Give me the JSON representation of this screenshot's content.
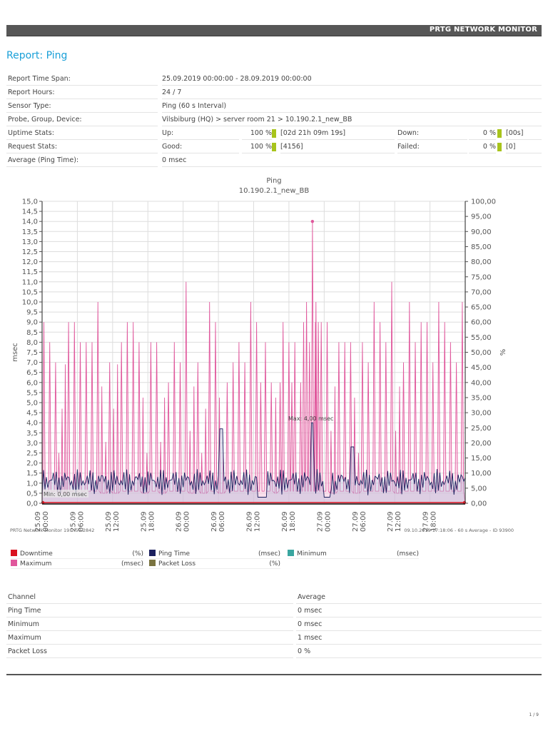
{
  "header": {
    "brand": "PRTG NETWORK MONITOR"
  },
  "report": {
    "title": "Report: Ping"
  },
  "info": {
    "time_span": {
      "label": "Report Time Span:",
      "value": "25.09.2019 00:00:00 - 28.09.2019 00:00:00"
    },
    "hours": {
      "label": "Report Hours:",
      "value": "24 / 7"
    },
    "sensor_type": {
      "label": "Sensor Type:",
      "value": "Ping (60 s Interval)"
    },
    "device": {
      "label": "Probe, Group, Device:",
      "value": "Vilsbiburg (HQ) > server room 21 > 10.190.2.1_new_BB"
    },
    "uptime": {
      "label": "Uptime Stats:",
      "up_label": "Up:",
      "up_pct": "100 %",
      "up_ext": "[02d 21h 09m 19s]",
      "down_label": "Down:",
      "down_pct": "0 %",
      "down_ext": "[00s]"
    },
    "requests": {
      "label": "Request Stats:",
      "good_label": "Good:",
      "good_pct": "100 %",
      "good_ext": "[4156]",
      "failed_label": "Failed:",
      "failed_pct": "0 %",
      "failed_ext": "[0]"
    },
    "average": {
      "label": "Average (Ping Time):",
      "value": "0 msec"
    },
    "bar_color": "#a8c41c"
  },
  "chart_meta": {
    "footer_left": "PRTG Network Monitor 19.2.50.2842",
    "footer_right": "09.10.2019 17:18:06 - 60 s Average - ID 93900",
    "max_label": "Max: 4,00 msec",
    "min_label": "Min: 0,00 msec"
  },
  "chart_data": {
    "type": "line",
    "title": "Ping",
    "subtitle": "10.190.2.1_new_BB",
    "xlabel": "",
    "ylabel": "msec",
    "y2label": "%",
    "ylim": [
      0,
      15
    ],
    "y2lim": [
      0,
      100
    ],
    "grid": true,
    "legend_position": "bottom",
    "y_ticks": [
      "0,0",
      "0,5",
      "1,0",
      "1,5",
      "2,0",
      "2,5",
      "3,0",
      "3,5",
      "4,0",
      "4,5",
      "5,0",
      "5,5",
      "6,0",
      "6,5",
      "7,0",
      "7,5",
      "8,0",
      "8,5",
      "9,0",
      "9,5",
      "10,0",
      "10,5",
      "11,0",
      "11,5",
      "12,0",
      "12,5",
      "13,0",
      "13,5",
      "14,0",
      "14,5",
      "15,0"
    ],
    "y2_ticks": [
      "0,00",
      "5,00",
      "10,00",
      "15,00",
      "20,00",
      "25,00",
      "30,00",
      "35,00",
      "40,00",
      "45,00",
      "50,00",
      "55,00",
      "60,00",
      "65,00",
      "70,00",
      "75,00",
      "80,00",
      "85,00",
      "90,00",
      "95,00",
      "100,00"
    ],
    "x_ticks": [
      [
        "25.09",
        "00:00"
      ],
      [
        "25.09",
        "06:00"
      ],
      [
        "25.09",
        "12:00"
      ],
      [
        "25.09",
        "18:00"
      ],
      [
        "26.09",
        "00:00"
      ],
      [
        "26.09",
        "06:00"
      ],
      [
        "26.09",
        "12:00"
      ],
      [
        "26.09",
        "18:00"
      ],
      [
        "27.09",
        "00:00"
      ],
      [
        "27.09",
        "06:00"
      ],
      [
        "27.09",
        "12:00"
      ],
      [
        "27.09",
        "18:00"
      ]
    ],
    "x_range_hours": [
      0,
      72
    ],
    "series": [
      {
        "name": "Downtime",
        "unit": "(%)",
        "color": "#d9121f",
        "axis": "right",
        "values_desc": "0 throughout"
      },
      {
        "name": "Ping Time",
        "unit": "(msec)",
        "color": "#1b1f5e",
        "axis": "left",
        "values_desc": "mostly 0.5–2.0 msec, peak 4.00 msec near 26.09 21:00"
      },
      {
        "name": "Minimum",
        "unit": "(msec)",
        "color": "#3aa6a0",
        "axis": "left",
        "values_desc": "0 throughout"
      },
      {
        "name": "Maximum",
        "unit": "(msec)",
        "color": "#e0579c",
        "axis": "left",
        "values_desc": "spikes between 4 and 11 msec, peak 14.0 msec near 26.09 21:00"
      },
      {
        "name": "Packet Loss",
        "unit": "(%)",
        "color": "#7a7340",
        "axis": "right",
        "values_desc": "0 throughout"
      }
    ],
    "maximum_peaks": [
      {
        "h": 0.3,
        "v": 9
      },
      {
        "h": 1.3,
        "v": 8
      },
      {
        "h": 2.3,
        "v": 7
      },
      {
        "h": 4.5,
        "v": 9
      },
      {
        "h": 5.5,
        "v": 9
      },
      {
        "h": 6.5,
        "v": 8
      },
      {
        "h": 7.5,
        "v": 8
      },
      {
        "h": 8.5,
        "v": 8
      },
      {
        "h": 9.5,
        "v": 10
      },
      {
        "h": 11.5,
        "v": 7
      },
      {
        "h": 13.5,
        "v": 8
      },
      {
        "h": 14.5,
        "v": 9
      },
      {
        "h": 15.5,
        "v": 9
      },
      {
        "h": 16.5,
        "v": 8
      },
      {
        "h": 18.5,
        "v": 8
      },
      {
        "h": 19.5,
        "v": 8
      },
      {
        "h": 21.5,
        "v": 6
      },
      {
        "h": 22.5,
        "v": 8
      },
      {
        "h": 23.5,
        "v": 7
      },
      {
        "h": 24.5,
        "v": 11
      },
      {
        "h": 26.5,
        "v": 7
      },
      {
        "h": 28.5,
        "v": 10
      },
      {
        "h": 29.5,
        "v": 9
      },
      {
        "h": 31.5,
        "v": 6
      },
      {
        "h": 32.5,
        "v": 7
      },
      {
        "h": 33.5,
        "v": 8
      },
      {
        "h": 34.5,
        "v": 7
      },
      {
        "h": 35.5,
        "v": 10
      },
      {
        "h": 36.5,
        "v": 9
      },
      {
        "h": 40.5,
        "v": 6
      },
      {
        "h": 42.5,
        "v": 6
      },
      {
        "h": 44.5,
        "v": 9
      },
      {
        "h": 45.5,
        "v": 8
      },
      {
        "h": 46.5,
        "v": 9
      },
      {
        "h": 47.5,
        "v": 9
      },
      {
        "h": 48.5,
        "v": 9
      },
      {
        "h": 50.5,
        "v": 8
      },
      {
        "h": 51.5,
        "v": 8
      },
      {
        "h": 52.5,
        "v": 8
      },
      {
        "h": 54.5,
        "v": 8
      },
      {
        "h": 55.5,
        "v": 7
      },
      {
        "h": 56.5,
        "v": 10
      },
      {
        "h": 57.5,
        "v": 9
      },
      {
        "h": 58.5,
        "v": 8
      },
      {
        "h": 59.5,
        "v": 11
      },
      {
        "h": 61.5,
        "v": 7
      },
      {
        "h": 62.5,
        "v": 10
      },
      {
        "h": 63.5,
        "v": 8
      },
      {
        "h": 64.5,
        "v": 9
      },
      {
        "h": 65.5,
        "v": 9
      },
      {
        "h": 66.5,
        "v": 7
      },
      {
        "h": 67.5,
        "v": 10
      },
      {
        "h": 68.5,
        "v": 9
      },
      {
        "h": 69.5,
        "v": 8
      },
      {
        "h": 70.5,
        "v": 7
      },
      {
        "h": 71.5,
        "v": 10
      }
    ],
    "maximum_peak_extra": [
      {
        "h": 37.2,
        "v": 6
      },
      {
        "h": 38.0,
        "v": 8
      },
      {
        "h": 39.0,
        "v": 6
      },
      {
        "h": 41.0,
        "v": 9
      },
      {
        "h": 42.0,
        "v": 8
      },
      {
        "h": 43.0,
        "v": 8
      },
      {
        "h": 44.0,
        "v": 6
      },
      {
        "h": 45.0,
        "v": 10
      },
      {
        "h": 46.0,
        "v": 14
      },
      {
        "h": 46.6,
        "v": 10
      },
      {
        "h": 47.0,
        "v": 9
      }
    ],
    "annotations": [
      {
        "text": "Max: 4,00 msec",
        "series": "Ping Time",
        "h": 45.9,
        "v": 4.0
      },
      {
        "text": "Min: 0,00 msec",
        "series": "Ping Time",
        "h": 0,
        "v": 0
      }
    ]
  },
  "legend": [
    {
      "name": "Downtime",
      "unit": "(%)",
      "color": "#d9121f"
    },
    {
      "name": "Ping Time",
      "unit": "(msec)",
      "color": "#1b1f5e"
    },
    {
      "name": "Minimum",
      "unit": "(msec)",
      "color": "#3aa6a0"
    },
    {
      "name": "Maximum",
      "unit": "(msec)",
      "color": "#e0579c"
    },
    {
      "name": "Packet Loss",
      "unit": "(%)",
      "color": "#7a7340"
    }
  ],
  "channels": {
    "headers": [
      "Channel",
      "Average"
    ],
    "rows": [
      [
        "Ping Time",
        "0 msec"
      ],
      [
        "Minimum",
        "0 msec"
      ],
      [
        "Maximum",
        "1 msec"
      ],
      [
        "Packet Loss",
        "0 %"
      ]
    ]
  },
  "page": {
    "number": "1 / 9"
  }
}
